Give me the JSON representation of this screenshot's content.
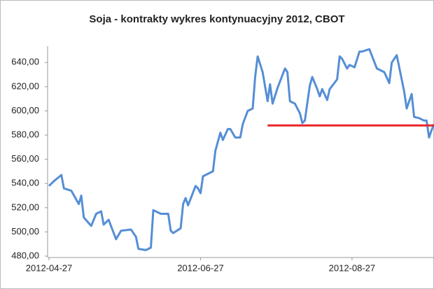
{
  "chart_data": {
    "type": "line",
    "title": "Soja - kontrakty wykres kontynuacyjny 2012, CBOT",
    "x": [
      "2012-04-27",
      "2012-04-29",
      "2012-05-02",
      "2012-05-03",
      "2012-05-06",
      "2012-05-09",
      "2012-05-10",
      "2012-05-11",
      "2012-05-14",
      "2012-05-16",
      "2012-05-18",
      "2012-05-19",
      "2012-05-21",
      "2012-05-24",
      "2012-05-26",
      "2012-05-30",
      "2012-06-01",
      "2012-06-02",
      "2012-06-05",
      "2012-06-07",
      "2012-06-08",
      "2012-06-11",
      "2012-06-14",
      "2012-06-15",
      "2012-06-16",
      "2012-06-19",
      "2012-06-20",
      "2012-06-21",
      "2012-06-22",
      "2012-06-25",
      "2012-06-26",
      "2012-06-27",
      "2012-06-28",
      "2012-07-02",
      "2012-07-03",
      "2012-07-05",
      "2012-07-06",
      "2012-07-08",
      "2012-07-09",
      "2012-07-11",
      "2012-07-13",
      "2012-07-14",
      "2012-07-16",
      "2012-07-18",
      "2012-07-19",
      "2012-07-20",
      "2012-07-22",
      "2012-07-24",
      "2012-07-25",
      "2012-07-26",
      "2012-07-28",
      "2012-07-31",
      "2012-08-01",
      "2012-08-02",
      "2012-08-04",
      "2012-08-06",
      "2012-08-07",
      "2012-08-08",
      "2012-08-10",
      "2012-08-11",
      "2012-08-13",
      "2012-08-14",
      "2012-08-15",
      "2012-08-17",
      "2012-08-18",
      "2012-08-21",
      "2012-08-22",
      "2012-08-23",
      "2012-08-25",
      "2012-08-26",
      "2012-08-28",
      "2012-08-30",
      "2012-08-31",
      "2012-09-03",
      "2012-09-06",
      "2012-09-09",
      "2012-09-11",
      "2012-09-12",
      "2012-09-14",
      "2012-09-17",
      "2012-09-18",
      "2012-09-20",
      "2012-09-21",
      "2012-09-23",
      "2012-09-25",
      "2012-09-26",
      "2012-09-27",
      "2012-09-28",
      "2012-09-29"
    ],
    "series": [
      {
        "color": "#558ed5",
        "values": [
          538,
          542,
          547,
          536,
          534,
          523,
          530,
          512,
          505,
          515,
          517,
          506,
          510,
          494,
          501,
          502,
          496,
          486,
          485,
          487,
          518,
          515,
          515,
          501,
          499,
          503,
          523,
          528,
          522,
          538,
          536,
          532,
          546,
          550,
          567,
          582,
          576,
          585,
          585,
          578,
          578,
          589,
          600,
          602,
          628,
          645,
          632,
          608,
          622,
          606,
          619,
          635,
          632,
          608,
          606,
          598,
          590,
          592,
          621,
          628,
          618,
          612,
          618,
          609,
          618,
          626,
          645,
          643,
          635,
          638,
          636,
          649,
          649,
          651,
          635,
          632,
          623,
          640,
          646,
          616,
          602,
          614,
          595,
          594,
          592,
          592,
          578,
          584,
          589
        ]
      }
    ],
    "reference_line": {
      "x": [
        "2012-07-24",
        "2012-09-29"
      ],
      "value": 588,
      "color": "#e8262b"
    },
    "xlim": [
      "2012-04-27",
      "2012-09-29"
    ],
    "xticks": [
      "2012-04-27",
      "2012-06-27",
      "2012-08-27"
    ],
    "ylim": [
      480,
      650
    ],
    "yticks": [
      {
        "value": 480,
        "label": "480,00"
      },
      {
        "value": 500,
        "label": "500,00"
      },
      {
        "value": 520,
        "label": "520,00"
      },
      {
        "value": 540,
        "label": "540,00"
      },
      {
        "value": 560,
        "label": "560,00"
      },
      {
        "value": 580,
        "label": "580,00"
      },
      {
        "value": 600,
        "label": "600,00"
      },
      {
        "value": 620,
        "label": "620,00"
      },
      {
        "value": 640,
        "label": "640,00"
      }
    ]
  }
}
